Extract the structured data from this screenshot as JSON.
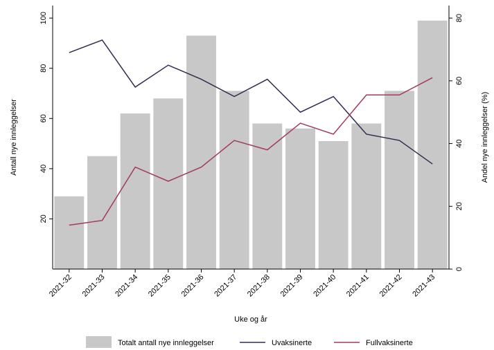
{
  "chart_data": {
    "type": "bar",
    "categories": [
      "2021-32",
      "2021-33",
      "2021-34",
      "2021-35",
      "2021-36",
      "2021-37",
      "2021-38",
      "2021-39",
      "2021-40",
      "2021-41",
      "2021-42",
      "2021-43"
    ],
    "series": [
      {
        "name": "Totalt antall nye innleggelser",
        "type": "bar",
        "axis": "left",
        "values": [
          29,
          45,
          62,
          68,
          93,
          71,
          58,
          56,
          51,
          58,
          71,
          99
        ],
        "color": "#c8c8c8"
      },
      {
        "name": "Uvaksinerte",
        "type": "line",
        "axis": "right",
        "values": [
          69,
          73,
          58,
          65,
          60.5,
          55,
          60.5,
          50,
          55,
          43,
          41,
          33.5
        ],
        "color": "#2e2e4f"
      },
      {
        "name": "Fullvaksinerte",
        "type": "line",
        "axis": "right",
        "values": [
          14,
          15.5,
          32.5,
          28,
          32.5,
          41,
          38,
          46.5,
          43,
          55.5,
          55.5,
          61
        ],
        "color": "#a33a5c"
      }
    ],
    "xlabel": "Uke og år",
    "ylabel": "Antall nye innleggelser",
    "ylabel_right": "Andel nye innleggelser (%)",
    "ylim": [
      0,
      105
    ],
    "ylim_right": [
      0,
      84
    ],
    "yticks": [
      20,
      40,
      60,
      80,
      100
    ],
    "yticks_right": [
      0,
      20,
      40,
      60,
      80
    ],
    "grid": false,
    "legend_position": "bottom"
  }
}
